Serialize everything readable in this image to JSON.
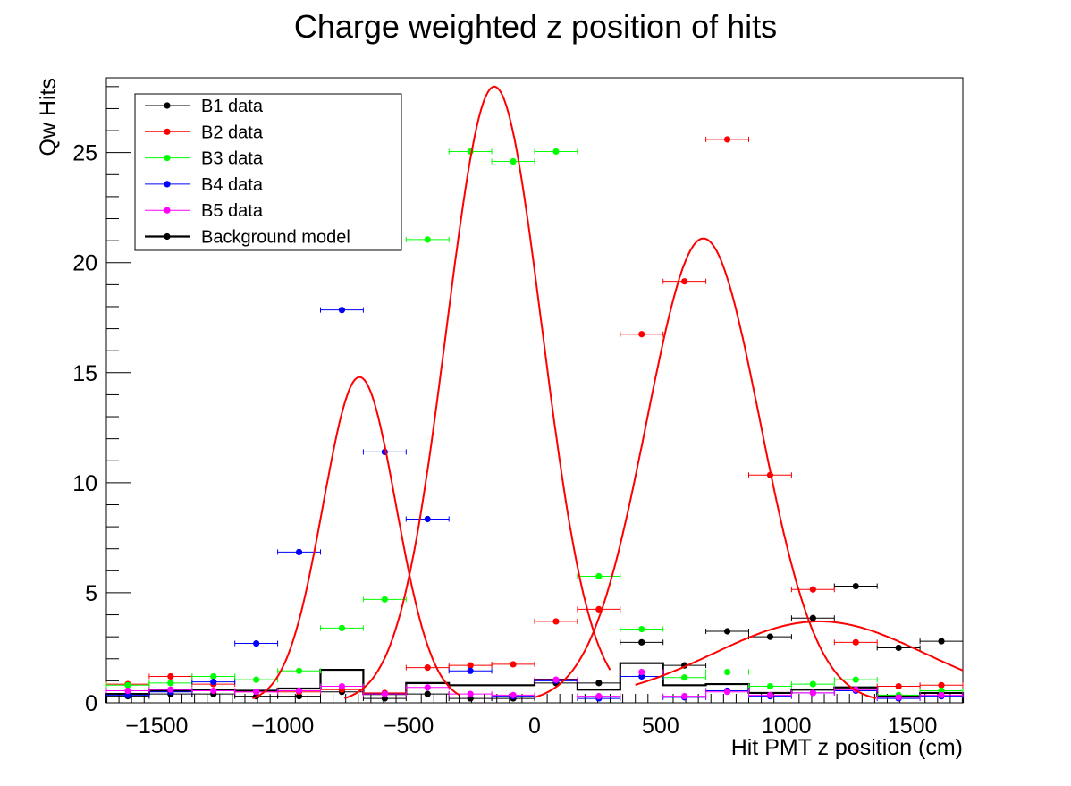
{
  "chart_data": {
    "type": "scatter",
    "title": "Charge weighted z position of hits",
    "xlabel": "Hit PMT z position (cm)",
    "ylabel": "Qw Hits",
    "xlim": [
      -1700,
      1700
    ],
    "ylim": [
      0,
      28.4
    ],
    "xticks": [
      -1500,
      -1000,
      -500,
      0,
      500,
      1000,
      1500
    ],
    "xtick_labels": [
      "−1500",
      "−1000",
      "−500",
      "0",
      "500",
      "1000",
      "1500"
    ],
    "yticks": [
      0,
      5,
      10,
      15,
      20,
      25
    ],
    "ytick_labels": [
      "0",
      "5",
      "10",
      "15",
      "20",
      "25"
    ],
    "grid": false,
    "legend_position": "top-left",
    "bin_half_width": 85,
    "series": [
      {
        "name": "B1 data",
        "color": "#000000",
        "x": [
          -1615,
          -1445,
          -1275,
          -1105,
          -935,
          -765,
          -595,
          -425,
          -255,
          -85,
          85,
          255,
          425,
          595,
          765,
          935,
          1105,
          1275,
          1445,
          1615
        ],
        "values": [
          0.3,
          0.4,
          0.4,
          0.3,
          0.3,
          0.5,
          0.2,
          0.4,
          0.2,
          0.2,
          0.9,
          0.9,
          2.75,
          1.7,
          3.25,
          3.0,
          3.85,
          5.3,
          2.5,
          2.8
        ]
      },
      {
        "name": "B2 data",
        "color": "#ff0000",
        "x": [
          -1615,
          -1445,
          -1275,
          -1105,
          -935,
          -765,
          -595,
          -425,
          -255,
          -85,
          85,
          255,
          425,
          595,
          765,
          935,
          1105,
          1275,
          1445,
          1615
        ],
        "values": [
          0.85,
          1.2,
          0.85,
          0.5,
          0.5,
          0.6,
          0.45,
          1.6,
          1.7,
          1.75,
          3.7,
          4.25,
          16.75,
          19.15,
          25.6,
          10.35,
          5.15,
          2.75,
          0.75,
          0.8
        ]
      },
      {
        "name": "B3 data",
        "color": "#00ff00",
        "x": [
          -1615,
          -1445,
          -1275,
          -1105,
          -935,
          -765,
          -595,
          -425,
          -255,
          -85,
          85,
          255,
          425,
          595,
          765,
          935,
          1105,
          1275,
          1445,
          1615
        ],
        "values": [
          0.8,
          0.9,
          1.2,
          1.05,
          1.45,
          3.4,
          4.7,
          21.05,
          25.05,
          24.6,
          25.05,
          5.75,
          3.35,
          1.15,
          1.4,
          0.75,
          0.85,
          1.05,
          0.35,
          0.55
        ]
      },
      {
        "name": "B4 data",
        "color": "#0000ff",
        "x": [
          -1615,
          -1445,
          -1275,
          -1105,
          -935,
          -765,
          -595,
          -425,
          -255,
          -85,
          85,
          255,
          425,
          595,
          765,
          935,
          1105,
          1275,
          1445,
          1615
        ],
        "values": [
          0.35,
          0.5,
          0.95,
          2.7,
          6.85,
          17.85,
          11.4,
          8.35,
          1.45,
          0.3,
          1.0,
          0.2,
          1.2,
          0.25,
          0.55,
          0.3,
          0.45,
          0.55,
          0.2,
          0.3
        ]
      },
      {
        "name": "B5 data",
        "color": "#ff00ff",
        "x": [
          -1615,
          -1445,
          -1275,
          -1105,
          -935,
          -765,
          -595,
          -425,
          -255,
          -85,
          85,
          255,
          425,
          595,
          765,
          935,
          1105,
          1275,
          1445,
          1615
        ],
        "values": [
          0.55,
          0.6,
          0.55,
          0.5,
          0.55,
          0.75,
          0.4,
          0.7,
          0.4,
          0.35,
          1.05,
          0.3,
          1.4,
          0.3,
          0.5,
          0.35,
          0.45,
          0.6,
          0.25,
          0.35
        ]
      }
    ],
    "background_model": {
      "name": "Background model",
      "color": "#000000",
      "bin_edges": [
        -1700,
        -1530,
        -1360,
        -1190,
        -1020,
        -850,
        -680,
        -510,
        -340,
        -170,
        0,
        170,
        340,
        510,
        680,
        850,
        1020,
        1190,
        1360,
        1530,
        1700
      ],
      "values": [
        0.4,
        0.55,
        0.6,
        0.55,
        0.65,
        1.5,
        0.4,
        0.9,
        0.8,
        0.8,
        1.05,
        0.6,
        1.8,
        0.8,
        0.85,
        0.45,
        0.6,
        0.7,
        0.3,
        0.45
      ]
    },
    "fits": [
      {
        "color": "#ff0000",
        "amplitude": 14.8,
        "mean": -695,
        "sigma": 145,
        "xmin": -1700,
        "xmax": -300
      },
      {
        "color": "#ff0000",
        "amplitude": 28.0,
        "mean": -160,
        "sigma": 190,
        "xmin": -800,
        "xmax": 300
      },
      {
        "color": "#ff0000",
        "amplitude": 21.1,
        "mean": 670,
        "sigma": 225,
        "xmin": 0,
        "xmax": 1700
      },
      {
        "color": "#ff0000",
        "amplitude": 3.7,
        "mean": 1130,
        "sigma": 420,
        "xmin": 400,
        "xmax": 1700
      }
    ]
  }
}
